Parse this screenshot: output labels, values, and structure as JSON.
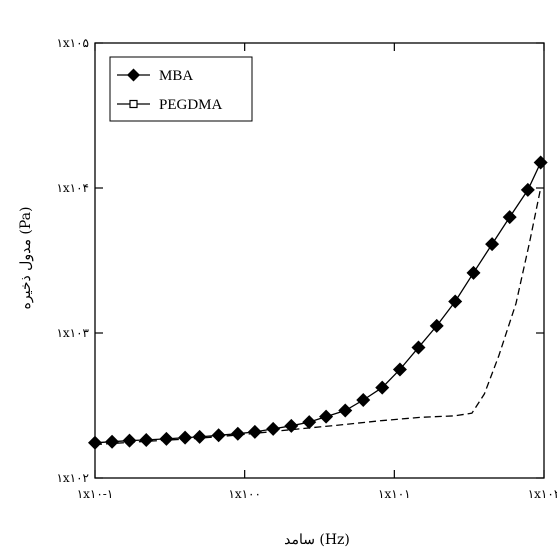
{
  "chart_data": {
    "type": "line",
    "xscale": "log",
    "yscale": "log",
    "xlim": [
      0.1,
      100
    ],
    "ylim": [
      100,
      100000
    ],
    "xlabel": "سامد (Hz)",
    "ylabel": "مدول ذخیره (Pa)",
    "x_ticks": [
      {
        "value": 0.1,
        "label": "۱x۱۰-۱"
      },
      {
        "value": 1,
        "label": "۱x۱۰۰"
      },
      {
        "value": 10,
        "label": "۱x۱۰۱"
      },
      {
        "value": 100,
        "label": "۱x۱۰۲"
      }
    ],
    "y_ticks": [
      {
        "value": 100,
        "label": "۱x۱۰۲"
      },
      {
        "value": 1000,
        "label": "۱x۱۰۳"
      },
      {
        "value": 10000,
        "label": "۱x۱۰۴"
      },
      {
        "value": 100000,
        "label": "۱x۱۰۵"
      }
    ],
    "legend_position": "top-left",
    "grid": false,
    "series": [
      {
        "name": "MBA",
        "marker": "diamond",
        "line": "solid",
        "points": [
          [
            0.1,
            175
          ],
          [
            0.13,
            178
          ],
          [
            0.17,
            181
          ],
          [
            0.22,
            183
          ],
          [
            0.3,
            186
          ],
          [
            0.4,
            190
          ],
          [
            0.5,
            192
          ],
          [
            0.67,
            197
          ],
          [
            0.9,
            202
          ],
          [
            1.17,
            208
          ],
          [
            1.55,
            218
          ],
          [
            2.05,
            229
          ],
          [
            2.7,
            243
          ],
          [
            3.5,
            265
          ],
          [
            4.7,
            292
          ],
          [
            6.2,
            345
          ],
          [
            8.3,
            420
          ],
          [
            10.9,
            560
          ],
          [
            14.5,
            795
          ],
          [
            19.2,
            1120
          ],
          [
            25.5,
            1650
          ],
          [
            33.8,
            2600
          ],
          [
            45,
            4100
          ],
          [
            59,
            6300
          ],
          [
            78,
            9700
          ],
          [
            95,
            15000
          ]
        ]
      },
      {
        "name": "PEGDMA",
        "marker": "square",
        "line": "dashed",
        "points": [
          [
            0.1,
            170
          ],
          [
            0.2,
            178
          ],
          [
            0.5,
            188
          ],
          [
            1,
            200
          ],
          [
            2,
            215
          ],
          [
            4,
            230
          ],
          [
            8,
            248
          ],
          [
            15,
            262
          ],
          [
            25,
            268
          ],
          [
            33,
            280
          ],
          [
            40,
            380
          ],
          [
            50,
            700
          ],
          [
            65,
            1600
          ],
          [
            80,
            4200
          ],
          [
            95,
            10000
          ]
        ]
      }
    ]
  }
}
